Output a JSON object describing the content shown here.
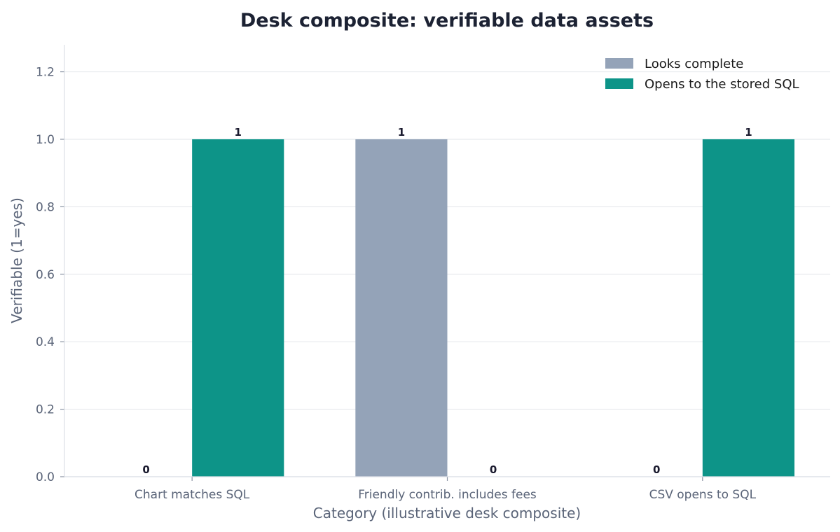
{
  "chart_data": {
    "type": "bar",
    "title": "Desk composite: verifiable data assets",
    "xlabel": "Category (illustrative desk composite)",
    "ylabel": "Verifiable (1=yes)",
    "categories": [
      "Chart matches SQL",
      "Friendly contrib. includes fees",
      "CSV opens to SQL"
    ],
    "series": [
      {
        "name": "Looks complete",
        "values": [
          0,
          1,
          0
        ],
        "color": "#94a3b8"
      },
      {
        "name": "Opens to the stored SQL",
        "values": [
          1,
          0,
          1
        ],
        "color": "#0d9488"
      }
    ],
    "ylim": [
      0,
      1.28
    ],
    "yticks": [
      "0.0",
      "0.2",
      "0.4",
      "0.6",
      "0.8",
      "1.0",
      "1.2"
    ],
    "data_labels": [
      [
        "0",
        "1",
        "0"
      ],
      [
        "1",
        "0",
        "1"
      ]
    ],
    "grid": true,
    "legend_position": "top-right"
  }
}
